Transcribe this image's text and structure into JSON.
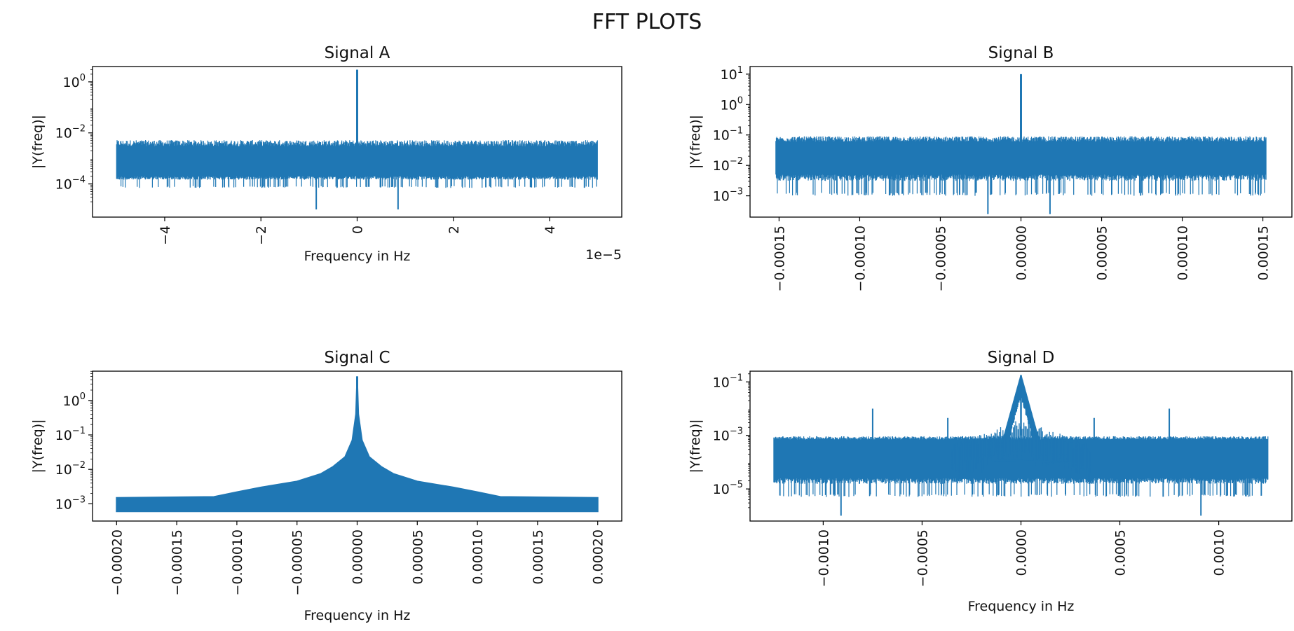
{
  "figure": {
    "title": "FFT PLOTS"
  },
  "colors": {
    "series": "#1f77b4",
    "axes": "#000000",
    "background": "#ffffff"
  },
  "chart_data": [
    {
      "type": "line",
      "title": "Signal A",
      "xlabel": "Frequency in Hz",
      "ylabel": "|Y(freq)|",
      "yscale": "log",
      "grid": false,
      "legend": "none",
      "x_multiplier": "1e−5",
      "xlim": [
        -5.5,
        5.5
      ],
      "ylim_exp": [
        -5.3,
        0.6
      ],
      "xticks": [
        -4,
        -2,
        0,
        2,
        4
      ],
      "xtick_labels": [
        "−4",
        "−2",
        "0",
        "2",
        "4"
      ],
      "yticks_exp": [
        -4,
        -2,
        0
      ],
      "ytick_base": "10",
      "ytick_exps": [
        "−4",
        "−2",
        "0"
      ],
      "noise": {
        "x_range": [
          -5.0,
          5.0
        ],
        "floor_low": 0.0002,
        "floor_high": 0.003,
        "outer_low": 7e-05,
        "outer_high": 0.006
      },
      "spikes": [
        {
          "x": 0.0,
          "y": 3.0
        },
        {
          "x": -0.85,
          "y": 1e-05
        },
        {
          "x": 0.85,
          "y": 1e-05
        }
      ]
    },
    {
      "type": "line",
      "title": "Signal B",
      "xlabel": "Frequency in Hz",
      "ylabel": "|Y(freq)|",
      "yscale": "log",
      "grid": false,
      "legend": "none",
      "xlim": [
        -0.000168,
        0.000168
      ],
      "ylim_exp": [
        -3.7,
        1.25
      ],
      "xticks": [
        -0.00015,
        -0.0001,
        -5e-05,
        0.0,
        5e-05,
        0.0001,
        0.00015
      ],
      "xtick_labels": [
        "−0.00015",
        "−0.00010",
        "−0.00005",
        "0.00000",
        "0.00005",
        "0.00010",
        "0.00015"
      ],
      "yticks_exp": [
        -3,
        -2,
        -1,
        0,
        1
      ],
      "ytick_base": "10",
      "ytick_exps": [
        "−3",
        "−2",
        "−1",
        "0",
        "1"
      ],
      "noise": {
        "x_range": [
          -0.000152,
          0.000152
        ],
        "floor_low": 0.005,
        "floor_high": 0.06,
        "outer_low": 0.001,
        "outer_high": 0.1
      },
      "spikes": [
        {
          "x": 0.0,
          "y": 10.0
        },
        {
          "x": -2.05e-05,
          "y": 0.00025
        },
        {
          "x": 1.8e-05,
          "y": 0.00025
        }
      ]
    },
    {
      "type": "line",
      "title": "Signal C",
      "xlabel": "Frequency in Hz",
      "ylabel": "|Y(freq)|",
      "yscale": "log",
      "grid": false,
      "legend": "none",
      "xlim": [
        -0.00022,
        0.00022
      ],
      "ylim_exp": [
        -3.5,
        0.85
      ],
      "xticks": [
        -0.0002,
        -0.00015,
        -0.0001,
        -5e-05,
        0.0,
        5e-05,
        0.0001,
        0.00015,
        0.0002
      ],
      "xtick_labels": [
        "−0.00020",
        "−0.00015",
        "−0.00010",
        "−0.00005",
        "0.00000",
        "0.00005",
        "0.00010",
        "0.00015",
        "0.00020"
      ],
      "yticks_exp": [
        -3,
        -2,
        -1,
        0
      ],
      "ytick_base": "10",
      "ytick_exps": [
        "−3",
        "−2",
        "−1",
        "0"
      ],
      "envelope": {
        "x": [
          -0.0002,
          -0.000119,
          -0.0001,
          -8e-05,
          -5e-05,
          -3e-05,
          -2e-05,
          -1e-05,
          -4e-06,
          -1e-06,
          0.0,
          1e-06,
          4e-06,
          1e-05,
          2e-05,
          3e-05,
          5e-05,
          8e-05,
          0.0001,
          0.000119,
          0.0002
        ],
        "upper": [
          0.0015,
          0.0016,
          0.0022,
          0.003,
          0.0045,
          0.0075,
          0.012,
          0.023,
          0.07,
          0.4,
          5.0,
          0.4,
          0.07,
          0.023,
          0.012,
          0.0075,
          0.0045,
          0.003,
          0.0022,
          0.0016,
          0.0015
        ],
        "lower": [
          0.0006,
          0.0006,
          0.0006,
          0.0006,
          0.0006,
          0.0006,
          0.0006,
          0.0006,
          0.0006,
          0.0006,
          0.0006,
          0.0006,
          0.0006,
          0.0006,
          0.0006,
          0.0006,
          0.0006,
          0.0006,
          0.0006,
          0.0006,
          0.0006
        ]
      }
    },
    {
      "type": "line",
      "title": "Signal D",
      "xlabel": "Frequency in Hz",
      "ylabel": "|Y(freq)|",
      "yscale": "log",
      "grid": false,
      "legend": "none",
      "xlim": [
        -0.00137,
        0.00137
      ],
      "ylim_exp": [
        -6.2,
        -0.6
      ],
      "xticks": [
        -0.001,
        -0.0005,
        0.0,
        0.0005,
        0.001
      ],
      "xtick_labels": [
        "−0.0010",
        "−0.0005",
        "0.0000",
        "0.0005",
        "0.0010"
      ],
      "yticks_exp": [
        -5,
        -3,
        -1
      ],
      "ytick_base": "10",
      "ytick_exps": [
        "−5",
        "−3",
        "−1"
      ],
      "noise": {
        "x_range": [
          -0.00125,
          0.00125
        ],
        "floor_low": 2.5e-05,
        "floor_high": 0.0007,
        "outer_low": 5e-06,
        "outer_high": 0.001
      },
      "peak": {
        "x": 0.0,
        "y": 0.18
      },
      "spikes": [
        {
          "x": -0.00075,
          "y": 0.01
        },
        {
          "x": -0.00037,
          "y": 0.0045
        },
        {
          "x": 0.00037,
          "y": 0.0045
        },
        {
          "x": 0.00075,
          "y": 0.01
        },
        {
          "x": -0.00091,
          "y": 1e-06
        },
        {
          "x": 0.00091,
          "y": 1e-06
        }
      ],
      "bridge": [
        {
          "x": -0.00015,
          "y": 0.00012
        },
        {
          "x": 0.00025,
          "y": 0.0001
        }
      ]
    }
  ]
}
